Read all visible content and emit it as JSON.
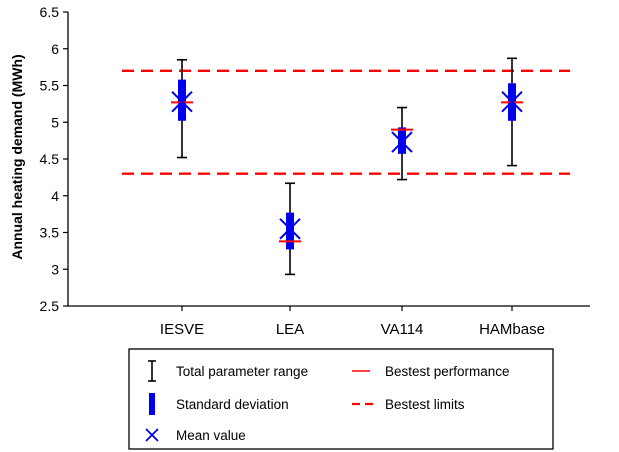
{
  "chart_data": {
    "type": "scatter",
    "ylabel": "Annual heating demand (MWh)",
    "xlabel": "",
    "title": "",
    "ylim": [
      2.5,
      6.5
    ],
    "yticks": [
      "2.5",
      "3",
      "3.5",
      "4",
      "4.5",
      "5",
      "5.5",
      "6",
      "6.5"
    ],
    "grid": false,
    "categories": [
      "IESVE",
      "LEA",
      "VA114",
      "HAMbase"
    ],
    "total_range": [
      {
        "min": 4.52,
        "max": 5.85
      },
      {
        "min": 2.93,
        "max": 4.17
      },
      {
        "min": 4.22,
        "max": 5.2
      },
      {
        "min": 4.41,
        "max": 5.87
      }
    ],
    "std_deviation": [
      {
        "low": 5.02,
        "high": 5.58
      },
      {
        "low": 3.27,
        "high": 3.77
      },
      {
        "low": 4.57,
        "high": 4.93
      },
      {
        "low": 5.02,
        "high": 5.53
      }
    ],
    "mean": [
      5.28,
      3.55,
      4.73,
      5.28
    ],
    "bestest_performance": [
      5.27,
      3.38,
      4.9,
      5.27
    ],
    "bestest_limits": [
      5.7,
      4.3
    ],
    "colors": {
      "range": "#000000",
      "std": "#0000ee",
      "mean": "#0000ee",
      "performance": "#ff0000",
      "limits": "#ff0000"
    },
    "legend": {
      "placement": "bottom",
      "items": [
        {
          "key": "range",
          "label": "Total parameter range"
        },
        {
          "key": "performance",
          "label": "Bestest performance"
        },
        {
          "key": "std",
          "label": "Standard deviation"
        },
        {
          "key": "limits",
          "label": "Bestest limits"
        },
        {
          "key": "mean",
          "label": "Mean value"
        }
      ]
    }
  }
}
